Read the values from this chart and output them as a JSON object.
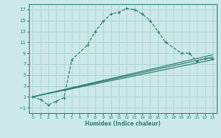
{
  "xlabel": "Humidex (Indice chaleur)",
  "bg_color": "#cce8e8",
  "line_color": "#2d7d6e",
  "grid_color": "#aad4d4",
  "xlim": [
    -0.5,
    23.5
  ],
  "ylim": [
    -2,
    18
  ],
  "yticks": [
    -1,
    1,
    3,
    5,
    7,
    9,
    11,
    13,
    15,
    17
  ],
  "xticks": [
    0,
    1,
    2,
    3,
    4,
    5,
    6,
    7,
    8,
    9,
    10,
    11,
    12,
    13,
    14,
    15,
    16,
    17,
    18,
    19,
    20,
    21,
    22,
    23
  ],
  "main_curve_x": [
    0,
    1,
    2,
    3,
    4,
    5,
    7,
    8,
    9,
    10,
    11,
    12,
    13,
    14,
    15,
    16,
    17,
    19,
    20,
    21,
    22,
    23
  ],
  "main_curve_y": [
    1.0,
    0.5,
    -0.5,
    0.2,
    0.8,
    7.8,
    10.5,
    13.0,
    14.8,
    16.2,
    16.5,
    17.2,
    17.0,
    16.2,
    15.0,
    13.0,
    11.0,
    9.0,
    9.0,
    7.5,
    8.0,
    8.0
  ],
  "line2_x": [
    0,
    23
  ],
  "line2_y": [
    1.0,
    7.8
  ],
  "line3_x": [
    0,
    23
  ],
  "line3_y": [
    1.0,
    8.3
  ],
  "line4_x": [
    0,
    23
  ],
  "line4_y": [
    1.0,
    8.7
  ]
}
